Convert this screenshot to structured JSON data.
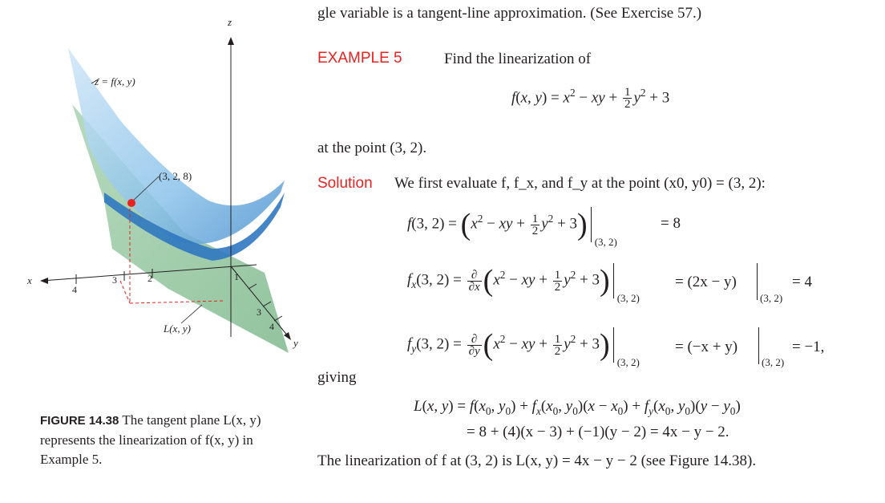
{
  "intro_line": "gle variable is a tangent-line approximation. (See Exercise 57.)",
  "example": {
    "label": "EXAMPLE 5",
    "prompt": "Find the linearization of",
    "at_point": "at the point (3, 2).",
    "giving": "giving",
    "conclusion": "The linearization of f at (3, 2) is L(x, y) = 4x − y − 2 (see Figure 14.38)."
  },
  "solution": {
    "label": "Solution",
    "text": "We first evaluate f, f_x, and f_y at the point (x0, y0) = (3, 2):"
  },
  "equations": {
    "eval_f_result": "= 8",
    "eval_fx_mid": "= (2x − y)",
    "eval_fx_result": "= 4",
    "eval_fy_mid": "= (−x + y)",
    "eval_fy_result": "= −1,",
    "eval_at": "(3, 2)",
    "L_line2": "= 8 + (4)(x − 3) + (−1)(y − 2) = 4x − y − 2."
  },
  "figure": {
    "caption_label": "FIGURE 14.38",
    "caption_text": "The tangent plane L(x, y) represents the linearization of f(x, y) in Example 5.",
    "labels": {
      "z_axis": "z",
      "x_axis": "x",
      "y_axis": "y",
      "surface": "z = f(x, y)",
      "point": "(3, 2, 8)",
      "plane": "L(x, y)",
      "tick_x4": "4",
      "tick_x3": "3",
      "tick_x2": "2",
      "tick_y1": "1",
      "tick_y3": "3",
      "tick_y4": "4"
    },
    "colors": {
      "surface": "#8cc3ea",
      "surface_dark": "#2f78c0",
      "plane": "#9ccaa6",
      "point": "#e8231f",
      "dashes": "#e8231f"
    }
  }
}
